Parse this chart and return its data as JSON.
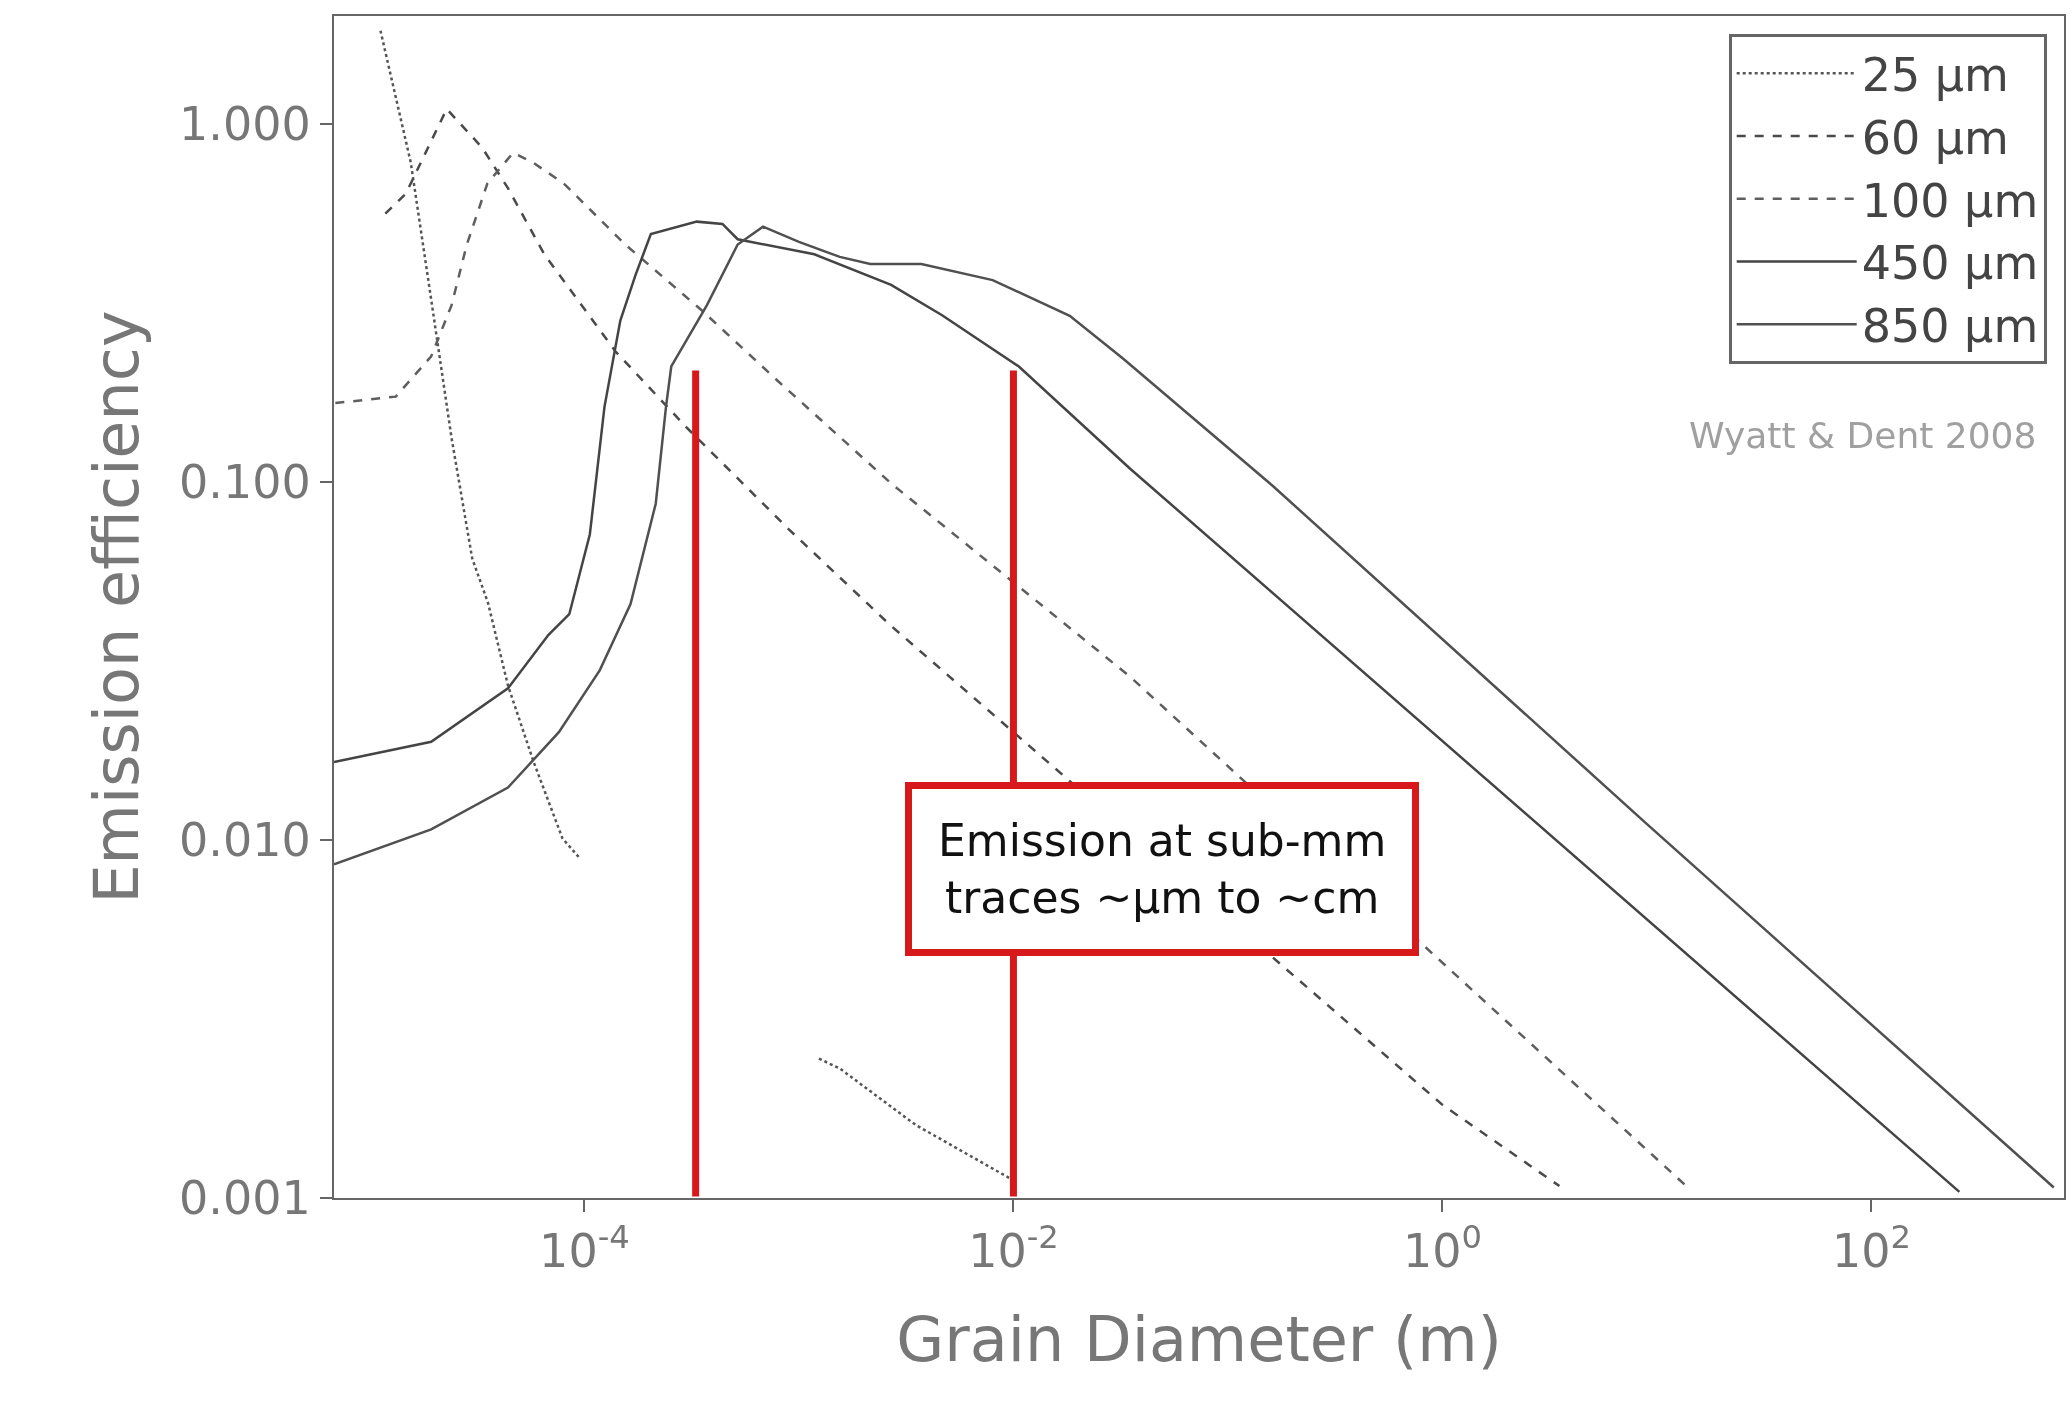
{
  "chart_data": {
    "type": "line",
    "xlabel": "Grain Diameter (m)",
    "ylabel": "Emission efficiency",
    "log": "xy",
    "legend": "top right",
    "xlim": [
      6.8e-06,
      790
    ],
    "ylim": [
      0.001,
      2.0
    ],
    "xticks": [
      {
        "value": 0.0001,
        "label": "10$^{-4}$"
      },
      {
        "value": 0.01,
        "label": "10$^{-2}$"
      },
      {
        "value": 1,
        "label": "10$^{0}$"
      },
      {
        "value": 100,
        "label": "10$^{2}$"
      }
    ],
    "yticks": [
      {
        "value": 0.001,
        "label": "0.001"
      },
      {
        "value": 0.01,
        "label": "0.010"
      },
      {
        "value": 0.1,
        "label": "0.100"
      },
      {
        "value": 1,
        "label": "1.000"
      }
    ],
    "series": [
      {
        "name": "25 µm",
        "color": "#555555",
        "line_style": "dotted",
        "x": [
          1.12e-05,
          1.55e-05,
          1.95e-05,
          2.4e-05,
          3e-05,
          3.55e-05,
          4.4e-05,
          5.8e-05,
          7.9e-05,
          9.5e-05,
          0.0003,
          0.00124,
          0.00155,
          0.0035,
          0.01
        ],
        "values": [
          1.82,
          0.78,
          0.31,
          0.133,
          0.061,
          0.046,
          0.027,
          0.0165,
          0.0101,
          0.0089,
          null,
          0.00245,
          0.0023,
          0.0016,
          0.00112
        ]
      },
      {
        "name": "60 µm",
        "color": "#4a4a4a",
        "line_style": "dashed",
        "x": [
          1.18e-05,
          1.47e-05,
          2.28e-05,
          3.34e-05,
          4.4e-05,
          6.5e-05,
          0.000139,
          0.000299,
          0.000895,
          0.00269,
          1,
          3.51
        ],
        "values": [
          0.561,
          0.638,
          1.1,
          0.857,
          0.661,
          0.432,
          0.232,
          0.142,
          0.0738,
          0.0396,
          0.00182,
          0.00108
        ]
      },
      {
        "name": "100 µm",
        "color": "#5e5e5e",
        "line_style": "dashed",
        "x": [
          6.9e-06,
          1.32e-05,
          1.93e-05,
          2.4e-05,
          2.83e-05,
          3.53e-05,
          4.65e-05,
          5.78e-05,
          8e-05,
          0.000155,
          0.000353,
          0.0008,
          0.00269,
          0.0349,
          13.7
        ],
        "values": [
          0.166,
          0.173,
          0.224,
          0.311,
          0.46,
          0.682,
          0.83,
          0.778,
          0.682,
          0.46,
          0.301,
          0.191,
          0.099,
          0.0286,
          0.00108
        ]
      },
      {
        "name": "450 µm",
        "color": "#444444",
        "line_style": "solid",
        "x": [
          6.8e-06,
          1.93e-05,
          4.4e-05,
          6.8e-05,
          8.5e-05,
          0.000106,
          0.000124,
          0.000147,
          0.000173,
          0.000204,
          0.000334,
          0.00044,
          0.000518,
          0.00118,
          0.00269,
          0.00465,
          0.0106,
          0.0349,
          257
        ],
        "values": [
          0.0165,
          0.0188,
          0.0265,
          0.0374,
          0.0427,
          0.0714,
          0.162,
          0.282,
          0.378,
          0.492,
          0.533,
          0.525,
          0.476,
          0.432,
          0.355,
          0.292,
          0.21,
          0.109,
          0.00104
        ]
      },
      {
        "name": "850 µm",
        "color": "#505050",
        "line_style": "solid",
        "x": [
          6.8e-06,
          1.93e-05,
          4.4e-05,
          7.6e-05,
          0.000118,
          0.000164,
          0.000215,
          0.00024,
          0.000254,
          0.000372,
          0.000518,
          0.00068,
          0.001,
          0.00155,
          0.00215,
          0.00372,
          0.008,
          0.0183,
          0.0324,
          0.161,
          8.8,
          708
        ],
        "values": [
          0.00855,
          0.0107,
          0.014,
          0.02,
          0.0298,
          0.0456,
          0.0869,
          0.162,
          0.21,
          0.311,
          0.46,
          0.516,
          0.468,
          0.425,
          0.406,
          0.406,
          0.366,
          0.291,
          0.221,
          0.0977,
          0.0112,
          0.00107
        ]
      }
    ],
    "ref_lines": [
      {
        "axis": "x",
        "value": 0.00033,
        "color": "#d7191c"
      },
      {
        "axis": "x",
        "value": 0.01,
        "color": "#d7191c"
      }
    ],
    "annotations": [
      "Emission at sub-mm\ntraces ~µm to ~cm",
      "Wyatt & Dent 2008"
    ]
  }
}
